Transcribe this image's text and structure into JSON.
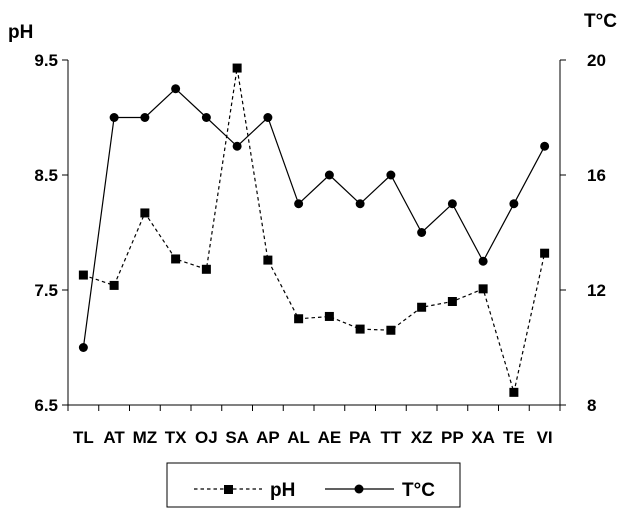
{
  "chart_data": {
    "type": "line",
    "categories": [
      "TL",
      "AT",
      "MZ",
      "TX",
      "OJ",
      "SA",
      "AP",
      "AL",
      "AE",
      "PA",
      "TT",
      "XZ",
      "PP",
      "XA",
      "TE",
      "VI"
    ],
    "y_left": {
      "label": "pH",
      "ticks": [
        "6.5",
        "7.5",
        "8.5",
        "9.5"
      ],
      "range": [
        6.5,
        9.5
      ]
    },
    "y_right": {
      "label": "T°C",
      "ticks": [
        "8",
        "12",
        "16",
        "20"
      ],
      "range": [
        8,
        20
      ]
    },
    "series": [
      {
        "name": "pH",
        "axis": "left",
        "line": "dashed",
        "marker": "square",
        "values": [
          7.63,
          7.54,
          8.17,
          7.77,
          7.68,
          9.43,
          7.76,
          7.25,
          7.27,
          7.16,
          7.15,
          7.35,
          7.4,
          7.51,
          6.61,
          7.82
        ]
      },
      {
        "name": "T°C",
        "axis": "right",
        "line": "solid",
        "marker": "circle",
        "values": [
          10,
          18,
          18,
          19,
          18,
          17,
          18,
          15,
          16,
          15,
          16,
          14,
          15,
          13,
          15,
          17
        ]
      }
    ],
    "legend": {
      "position": "bottom-center"
    },
    "grid": false
  }
}
